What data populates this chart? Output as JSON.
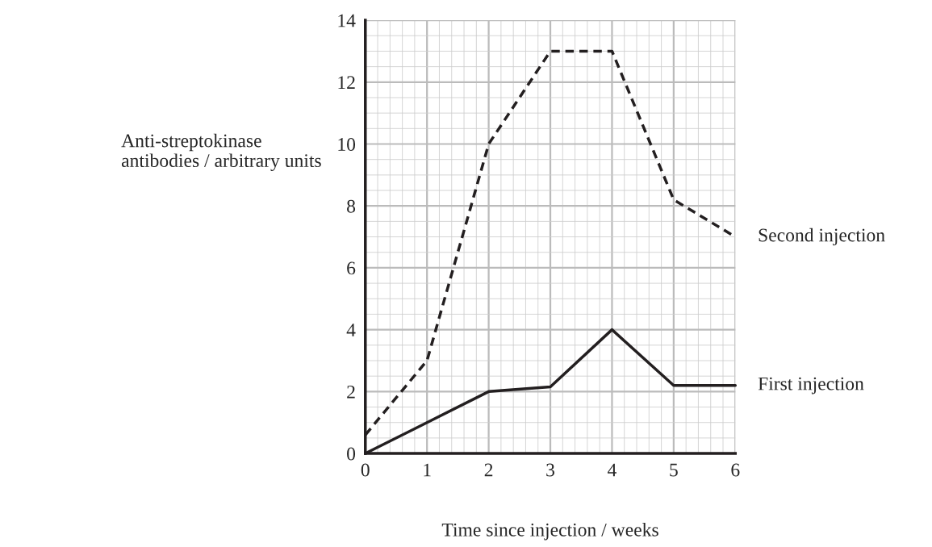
{
  "chart_data": {
    "type": "line",
    "xlabel": "Time since injection / weeks",
    "ylabel": "Anti-streptokinase\nantibodies / arbitrary units",
    "x": [
      0,
      1,
      2,
      3,
      4,
      5,
      6
    ],
    "series": [
      {
        "name": "Second injection",
        "color": "#231f20",
        "line_style": "dashed",
        "values": [
          0.6,
          3.0,
          10.0,
          13.0,
          13.0,
          8.2,
          7.0
        ]
      },
      {
        "name": "First injection",
        "color": "#231f20",
        "line_style": "solid",
        "values": [
          0,
          1.0,
          2.0,
          2.15,
          4.0,
          2.2,
          2.2
        ]
      }
    ],
    "xlim": [
      0,
      6
    ],
    "xticks": [
      0,
      1,
      2,
      3,
      4,
      5,
      6
    ],
    "ylim": [
      0,
      14
    ],
    "yticks": [
      0,
      2,
      4,
      6,
      8,
      10,
      12,
      14
    ],
    "grid": true,
    "marker": "none"
  }
}
